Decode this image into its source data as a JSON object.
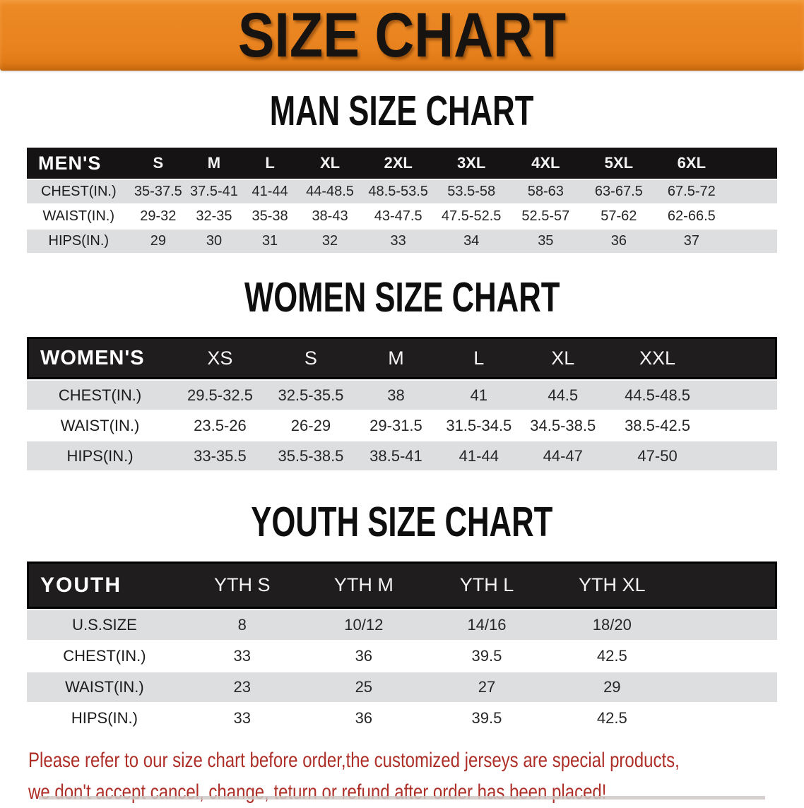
{
  "banner": {
    "title": "SIZE CHART"
  },
  "sections": {
    "men": {
      "heading": "MAN SIZE CHART"
    },
    "women": {
      "heading": "WOMEN SIZE CHART"
    },
    "youth": {
      "heading": "YOUTH SIZE CHART"
    }
  },
  "tables": {
    "men": {
      "header": [
        "MEN'S",
        "S",
        "M",
        "L",
        "XL",
        "2XL",
        "3XL",
        "4XL",
        "5XL",
        "6XL"
      ],
      "rows": [
        {
          "label": "CHEST(IN.)",
          "values": [
            "35-37.5",
            "37.5-41",
            "41-44",
            "44-48.5",
            "48.5-53.5",
            "53.5-58",
            "58-63",
            "63-67.5",
            "67.5-72"
          ]
        },
        {
          "label": "WAIST(IN.)",
          "values": [
            "29-32",
            "32-35",
            "35-38",
            "38-43",
            "43-47.5",
            "47.5-52.5",
            "52.5-57",
            "57-62",
            "62-66.5"
          ]
        },
        {
          "label": "HIPS(IN.)",
          "values": [
            "29",
            "30",
            "31",
            "32",
            "33",
            "34",
            "35",
            "36",
            "37"
          ]
        }
      ]
    },
    "women": {
      "header": [
        "WOMEN'S",
        "XS",
        "S",
        "M",
        "L",
        "XL",
        "XXL"
      ],
      "rows": [
        {
          "label": "CHEST(IN.)",
          "values": [
            "29.5-32.5",
            "32.5-35.5",
            "38",
            "41",
            "44.5",
            "44.5-48.5"
          ]
        },
        {
          "label": "WAIST(IN.)",
          "values": [
            "23.5-26",
            "26-29",
            "29-31.5",
            "31.5-34.5",
            "34.5-38.5",
            "38.5-42.5"
          ]
        },
        {
          "label": "HIPS(IN.)",
          "values": [
            "33-35.5",
            "35.5-38.5",
            "38.5-41",
            "41-44",
            "44-47",
            "47-50"
          ]
        }
      ]
    },
    "youth": {
      "header": [
        "YOUTH",
        "YTH S",
        "YTH M",
        "YTH L",
        "YTH XL"
      ],
      "rows": [
        {
          "label": "U.S.SIZE",
          "values": [
            "8",
            "10/12",
            "14/16",
            "18/20"
          ]
        },
        {
          "label": "CHEST(IN.)",
          "values": [
            "33",
            "36",
            "39.5",
            "42.5"
          ]
        },
        {
          "label": "WAIST(IN.)",
          "values": [
            "23",
            "25",
            "27",
            "29"
          ]
        },
        {
          "label": "HIPS(IN.)",
          "values": [
            "33",
            "36",
            "39.5",
            "42.5"
          ]
        }
      ]
    }
  },
  "notice": {
    "line1": "Please refer to our size chart before order,the customized jerseys are special products,",
    "line2": "we don't accept cancel, change, teturn or refund after order has been placed!"
  },
  "colors": {
    "banner_orange": "#E8821E",
    "header_band_black": "#1B1819",
    "row_gray": "#DCDEE0",
    "notice_red": "#AE2E28"
  }
}
